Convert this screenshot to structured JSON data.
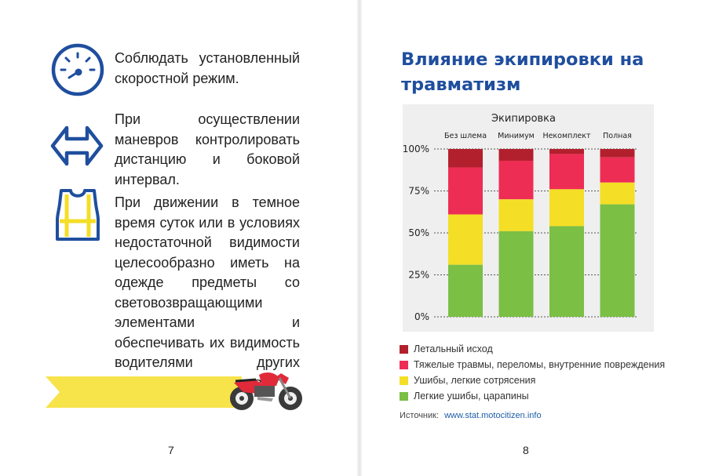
{
  "left_page": {
    "tips": [
      {
        "icon": "speedometer-icon",
        "text": "Соблюдать установленный скоростной режим."
      },
      {
        "icon": "double-arrow-icon",
        "text": "При осуществлении маневров контролировать дистанцию и боковой интервал."
      },
      {
        "icon": "reflective-vest-icon",
        "text": "При движении в темное время суток или в условиях недостаточной видимости целесообразно иметь на одежде предметы со световозвращающими элементами и обеспечивать их видимость водителями других транспортных средств."
      }
    ],
    "page_number": "7"
  },
  "right_page": {
    "page_number": "8",
    "source_label": "Источник:",
    "source_link": "www.stat.motocitizen.info"
  },
  "colors": {
    "accent_blue": "#1f4e9e",
    "fatal": "#b3202d",
    "severe": "#ee2d55",
    "minor": "#f4de26",
    "light": "#7bbf45",
    "ribbon": "#f7e34a",
    "moto_red": "#e02a3a"
  },
  "chart_data": {
    "type": "bar",
    "stacked": true,
    "title": "Влияние экипировки на травматизм",
    "group_label": "Экипировка",
    "categories": [
      "Без шлема",
      "Минимум",
      "Некомплект",
      "Полная"
    ],
    "y_ticks": [
      "100%",
      "75%",
      "50%",
      "25%",
      "0%"
    ],
    "ylim": [
      0,
      100
    ],
    "grid": "dotted-horizontal",
    "legend_placement": "bottom",
    "series": [
      {
        "name": "Летальный исход",
        "color": "#b3202d",
        "values": [
          11,
          7,
          3,
          5
        ]
      },
      {
        "name": "Тяжелые травмы, переломы, внутренние повреждения",
        "color": "#ee2d55",
        "values": [
          28,
          23,
          21,
          15
        ]
      },
      {
        "name": "Ушибы, легкие сотрясения",
        "color": "#f4de26",
        "values": [
          30,
          19,
          22,
          13
        ]
      },
      {
        "name": "Легкие ушибы, царапины",
        "color": "#7bbf45",
        "values": [
          31,
          51,
          54,
          67
        ]
      }
    ]
  }
}
